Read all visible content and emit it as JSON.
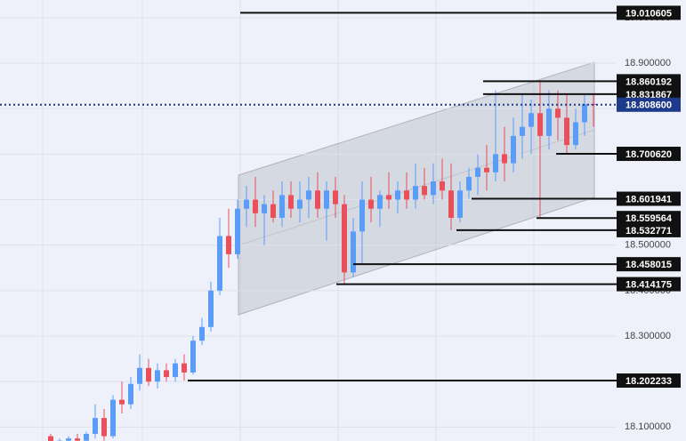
{
  "chart_data": {
    "type": "candlestick",
    "up_color": "#5b9cf6",
    "down_color": "#e8505b",
    "ylim": [
      18.0694,
      19.0388
    ],
    "yticks": [
      {
        "value": 18.1,
        "label": "18.100000"
      },
      {
        "value": 18.2,
        "label": "18.200000"
      },
      {
        "value": 18.3,
        "label": "18.300000"
      },
      {
        "value": 18.4,
        "label": "18.400000"
      },
      {
        "value": 18.5,
        "label": "18.500000"
      },
      {
        "value": 18.6,
        "label": "18.600000"
      },
      {
        "value": 18.7,
        "label": "18.700000"
      },
      {
        "value": 18.8,
        "label": "18.800000"
      },
      {
        "value": 18.9,
        "label": "18.900000"
      },
      {
        "value": 19.0,
        "label": "19.000000"
      }
    ],
    "grid": true,
    "open": [
      18.08,
      18.065,
      18.07,
      18.075,
      18.07,
      18.085,
      18.12,
      18.08,
      18.16,
      18.15,
      18.195,
      18.23,
      18.2,
      18.225,
      18.21,
      18.24,
      18.22,
      18.29,
      18.32,
      18.4,
      18.52,
      18.48,
      18.58,
      18.6,
      18.57,
      18.59,
      18.56,
      18.61,
      18.58,
      18.6,
      18.62,
      18.58,
      18.62,
      18.59,
      18.44,
      18.53,
      18.6,
      18.58,
      18.61,
      18.6,
      18.62,
      18.6,
      18.63,
      18.61,
      18.64,
      18.62,
      18.56,
      18.62,
      18.65,
      18.67,
      18.66,
      18.7,
      18.68,
      18.74,
      18.76,
      18.79,
      18.74,
      18.8,
      18.78,
      18.72,
      18.77,
      18.81
    ],
    "high": [
      18.085,
      18.075,
      18.08,
      18.085,
      18.09,
      18.15,
      18.14,
      18.17,
      18.2,
      18.21,
      18.26,
      18.25,
      18.24,
      18.24,
      18.25,
      18.26,
      18.3,
      18.34,
      18.42,
      18.56,
      18.58,
      18.6,
      18.63,
      18.65,
      18.61,
      18.62,
      18.64,
      18.64,
      18.64,
      18.65,
      18.66,
      18.64,
      18.65,
      18.61,
      18.56,
      18.64,
      18.65,
      18.62,
      18.66,
      18.64,
      18.66,
      18.68,
      18.67,
      18.68,
      18.69,
      18.68,
      18.64,
      18.67,
      18.7,
      18.72,
      18.84,
      18.76,
      18.78,
      18.83,
      18.82,
      18.86,
      18.84,
      18.84,
      18.83,
      18.8,
      18.83,
      18.832
    ],
    "low": [
      18.06,
      18.055,
      18.06,
      18.065,
      18.065,
      18.075,
      18.07,
      18.075,
      18.13,
      18.14,
      18.18,
      18.19,
      18.185,
      18.2,
      18.2,
      18.202,
      18.215,
      18.28,
      18.31,
      18.39,
      18.45,
      18.47,
      18.54,
      18.54,
      18.5,
      18.55,
      18.54,
      18.56,
      18.55,
      18.56,
      18.56,
      18.51,
      18.56,
      18.414,
      18.43,
      18.458,
      18.55,
      18.54,
      18.58,
      18.57,
      18.58,
      18.58,
      18.6,
      18.59,
      18.6,
      18.533,
      18.55,
      18.602,
      18.61,
      18.62,
      18.64,
      18.64,
      18.66,
      18.69,
      18.7,
      18.56,
      18.71,
      18.73,
      18.701,
      18.71,
      18.74,
      18.76
    ],
    "close": [
      18.065,
      18.07,
      18.075,
      18.07,
      18.085,
      18.12,
      18.08,
      18.16,
      18.15,
      18.195,
      18.23,
      18.2,
      18.225,
      18.21,
      18.24,
      18.22,
      18.29,
      18.32,
      18.4,
      18.52,
      18.48,
      18.58,
      18.6,
      18.57,
      18.59,
      18.56,
      18.61,
      18.58,
      18.6,
      18.62,
      18.58,
      18.62,
      18.59,
      18.44,
      18.53,
      18.6,
      18.58,
      18.61,
      18.6,
      18.62,
      18.6,
      18.63,
      18.61,
      18.64,
      18.62,
      18.56,
      18.62,
      18.65,
      18.67,
      18.66,
      18.7,
      18.68,
      18.74,
      18.76,
      18.79,
      18.74,
      18.8,
      18.78,
      18.72,
      18.77,
      18.81,
      18.8086
    ],
    "levels": [
      19.010605,
      18.860192,
      18.831867,
      {
        "value": 18.70062,
        "label": "18.700620"
      },
      18.601941,
      18.559564,
      18.532771,
      18.458015,
      18.414175,
      18.202233
    ],
    "current": {
      "value": 18.8086,
      "label": "18.808600"
    }
  }
}
